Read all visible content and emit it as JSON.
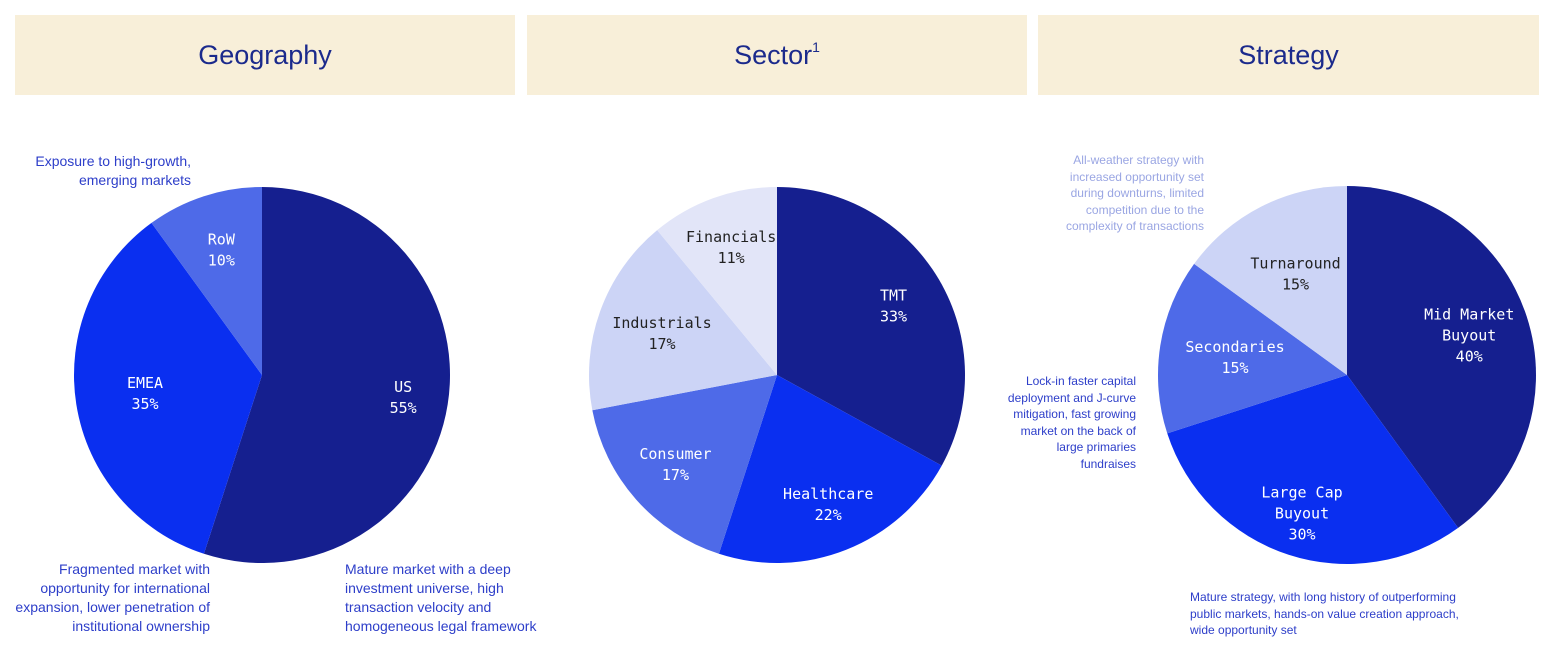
{
  "colors": {
    "header_bg": "#f8efd9",
    "header_text": "#1b2a8c",
    "navy": "#151f8f",
    "blue": "#0a2ff0",
    "mid_blue": "#4e6ae8",
    "light": "#ccd4f6",
    "lightest": "#e2e5f8",
    "note_blue": "#2d3ec9",
    "note_light": "#9aa6e3"
  },
  "headers": {
    "geography": "Geography",
    "sector": "Sector",
    "sector_sup": "1",
    "strategy": "Strategy"
  },
  "chart_data": [
    {
      "type": "pie",
      "title": "Geography",
      "slices": [
        {
          "label": "US",
          "value": 55,
          "value_label": "55%",
          "color": "#151f8f"
        },
        {
          "label": "EMEA",
          "value": 35,
          "value_label": "35%",
          "color": "#0a2ff0"
        },
        {
          "label": "RoW",
          "value": 10,
          "value_label": "10%",
          "color": "#4e6ae8"
        }
      ]
    },
    {
      "type": "pie",
      "title": "Sector",
      "slices": [
        {
          "label": "TMT",
          "value": 33,
          "value_label": "33%",
          "color": "#151f8f"
        },
        {
          "label": "Healthcare",
          "value": 22,
          "value_label": "22%",
          "color": "#0a2ff0"
        },
        {
          "label": "Consumer",
          "value": 17,
          "value_label": "17%",
          "color": "#4e6ae8"
        },
        {
          "label": "Industrials",
          "value": 17,
          "value_label": "17%",
          "color": "#ccd4f6"
        },
        {
          "label": "Financials",
          "value": 11,
          "value_label": "11%",
          "color": "#e2e5f8"
        }
      ]
    },
    {
      "type": "pie",
      "title": "Strategy",
      "slices": [
        {
          "label": "Mid Market\nBuyout",
          "value": 40,
          "value_label": "40%",
          "color": "#151f8f"
        },
        {
          "label": "Large Cap\nBuyout",
          "value": 30,
          "value_label": "30%",
          "color": "#0a2ff0"
        },
        {
          "label": "Secondaries",
          "value": 15,
          "value_label": "15%",
          "color": "#4e6ae8"
        },
        {
          "label": "Turnaround",
          "value": 15,
          "value_label": "15%",
          "color": "#ccd4f6"
        }
      ]
    }
  ],
  "notes": {
    "geo_row": "Exposure to high-growth, emerging markets",
    "geo_emea": "Fragmented market with opportunity for international expansion, lower penetration of institutional ownership",
    "geo_us": "Mature market with a deep investment universe, high transaction velocity and homogeneous legal framework",
    "strat_turnaround": "All-weather strategy with increased opportunity set during downturns, limited competition due to the complexity of transactions",
    "strat_secondaries": "Lock-in faster capital deployment and J-curve mitigation, fast growing market on the back of large primaries fundraises",
    "strat_buyout": "Mature strategy, with long history of outperforming public markets, hands-on value creation approach, wide opportunity set"
  }
}
